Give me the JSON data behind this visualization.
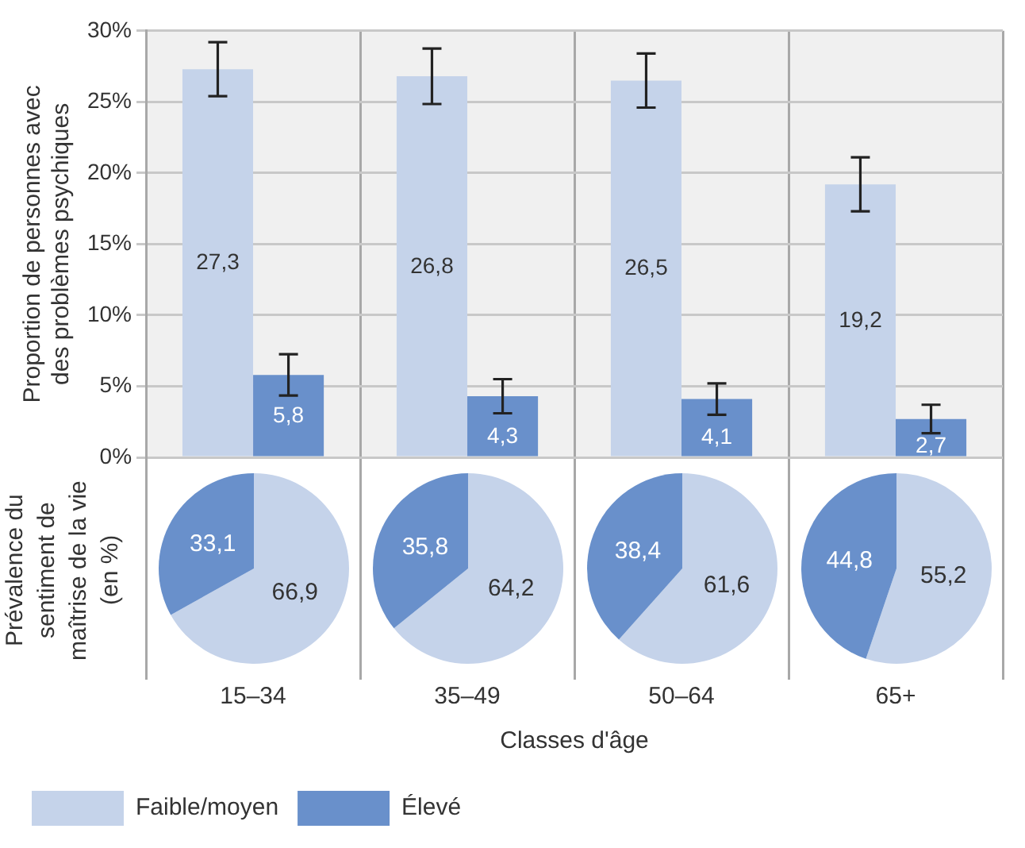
{
  "chart_data": [
    {
      "type": "bar",
      "categories": [
        null,
        null,
        null,
        null
      ],
      "ylabel": "Proportion de personnes avec des problèmes psychiques",
      "xlabel": "Classes d'âge",
      "series": [
        {
          "name": "Faible/moyen",
          "color": "#c5d3ea",
          "values": [
            27.3,
            26.8,
            26.5,
            19.2
          ],
          "errors": [
            1.9,
            1.95,
            1.9,
            1.9
          ],
          "value_labels": [
            "27,3",
            "26,8",
            "26,5",
            "19,2"
          ]
        },
        {
          "name": "Élevé",
          "color": "#6990cb",
          "values": [
            5.8,
            4.3,
            4.1,
            2.7
          ],
          "errors": [
            1.45,
            1.2,
            1.1,
            1.0
          ],
          "value_labels": [
            "5,8",
            "4,3",
            "4,1",
            "2,7"
          ]
        }
      ],
      "ylim": [
        0,
        30
      ],
      "yticks": [
        {
          "value": 0,
          "label": "0%"
        },
        {
          "value": 5,
          "label": "5%"
        },
        {
          "value": 10,
          "label": "10%"
        },
        {
          "value": 15,
          "label": "15%"
        },
        {
          "value": 20,
          "label": "20%"
        },
        {
          "value": 25,
          "label": "25%"
        },
        {
          "value": 30,
          "label": "30%"
        }
      ],
      "grid": true,
      "legend": "bottom"
    },
    {
      "type": "pie",
      "title": "15–34",
      "categories": [
        null,
        null
      ],
      "values": [
        66.9,
        33.1
      ],
      "colors": [
        "#c5d3ea",
        "#6990cb"
      ],
      "value_labels": [
        "66,9",
        "33,1"
      ],
      "annotations": [
        "Prévalence du sentiment de maîtrise de la vie (en %)"
      ]
    },
    {
      "type": "pie",
      "title": "35–49",
      "categories": [
        null,
        null
      ],
      "values": [
        64.2,
        35.8
      ],
      "colors": [
        "#c5d3ea",
        "#6990cb"
      ],
      "value_labels": [
        "64,2",
        "35,8"
      ]
    },
    {
      "type": "pie",
      "title": "50–64",
      "categories": [
        null,
        null
      ],
      "values": [
        61.6,
        38.4
      ],
      "colors": [
        "#c5d3ea",
        "#6990cb"
      ],
      "value_labels": [
        "61,6",
        "38,4"
      ]
    },
    {
      "type": "pie",
      "title": "65+",
      "categories": [
        null,
        null
      ],
      "values": [
        55.2,
        44.8
      ],
      "colors": [
        "#c5d3ea",
        "#6990cb"
      ],
      "value_labels": [
        "55,2",
        "44,8"
      ]
    }
  ]
}
